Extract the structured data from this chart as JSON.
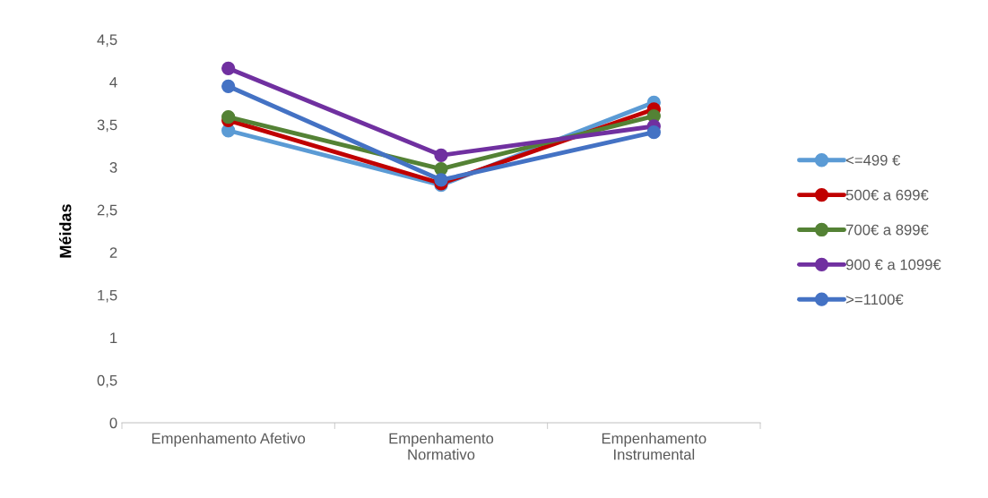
{
  "chart_data": {
    "type": "line",
    "ylabel": "Méidas",
    "categories": [
      "Empenhamento Afetivo",
      "Empenhamento\nNormativo",
      "Empenhamento\nInstrumental"
    ],
    "series": [
      {
        "name": "<=499 €",
        "color": "#5b9bd5",
        "values": [
          3.43,
          2.79,
          3.76
        ]
      },
      {
        "name": "500€ a 699€",
        "color": "#c00000",
        "values": [
          3.55,
          2.81,
          3.68
        ]
      },
      {
        "name": "700€ a 899€",
        "color": "#548235",
        "values": [
          3.59,
          2.98,
          3.6
        ]
      },
      {
        "name": "900 € a 1099€",
        "color": "#7030a0",
        "values": [
          4.16,
          3.14,
          3.48
        ]
      },
      {
        "name": ">=1100€",
        "color": "#4472c4",
        "values": [
          3.95,
          2.85,
          3.41
        ]
      }
    ],
    "ylim": [
      0,
      4.5
    ],
    "yticks": [
      {
        "value": 0,
        "label": "0"
      },
      {
        "value": 0.5,
        "label": "0,5"
      },
      {
        "value": 1,
        "label": "1"
      },
      {
        "value": 1.5,
        "label": "1,5"
      },
      {
        "value": 2,
        "label": "2"
      },
      {
        "value": 2.5,
        "label": "2,5"
      },
      {
        "value": 3,
        "label": "3"
      },
      {
        "value": 3.5,
        "label": "3,5"
      },
      {
        "value": 4,
        "label": "4"
      },
      {
        "value": 4.5,
        "label": "4,5"
      }
    ],
    "grid": false,
    "legend": "right",
    "marker": "circle",
    "line_style": "solid"
  }
}
